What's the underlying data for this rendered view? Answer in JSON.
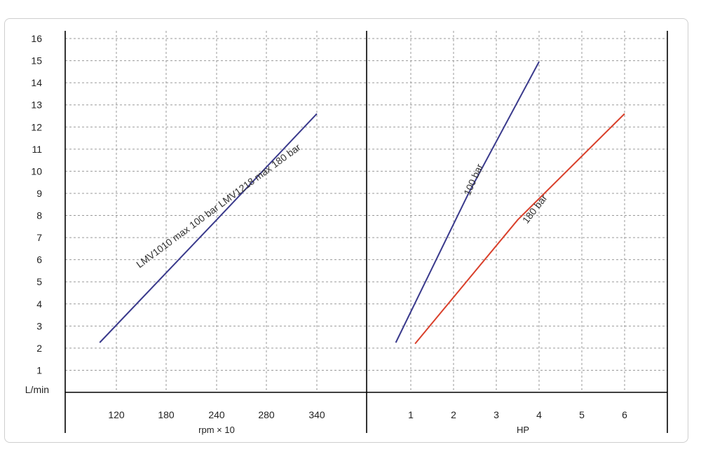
{
  "chart_data": {
    "type": "line",
    "y_axis": {
      "label": "L/min",
      "ticks": [
        1,
        2,
        3,
        4,
        5,
        6,
        7,
        8,
        9,
        10,
        11,
        12,
        13,
        14,
        15,
        16
      ],
      "ylim": [
        0,
        16
      ]
    },
    "panels": [
      {
        "xlabel": "rpm × 10",
        "x_ticks": [
          120,
          180,
          240,
          280,
          340
        ],
        "series": [
          {
            "name": "LMV1010 max 100 bar  LMV1218 max 180 bar",
            "color": "#3a3a8c",
            "points": [
              [
                100,
                2.25
              ],
              [
                240,
                7.8
              ],
              [
                340,
                12.6
              ]
            ]
          }
        ]
      },
      {
        "xlabel": "HP",
        "x_ticks": [
          1,
          2,
          3,
          4,
          5,
          6
        ],
        "series": [
          {
            "name": "100 bar",
            "color": "#3a3a8c",
            "points": [
              [
                0.65,
                2.25
              ],
              [
                2.35,
                9.0
              ],
              [
                4.0,
                14.95
              ]
            ]
          },
          {
            "name": "180 bar",
            "color": "#d9402b",
            "points": [
              [
                1.1,
                2.2
              ],
              [
                3.5,
                7.8
              ],
              [
                6.0,
                12.6
              ]
            ]
          }
        ]
      }
    ],
    "grid": true,
    "legend": "none"
  }
}
